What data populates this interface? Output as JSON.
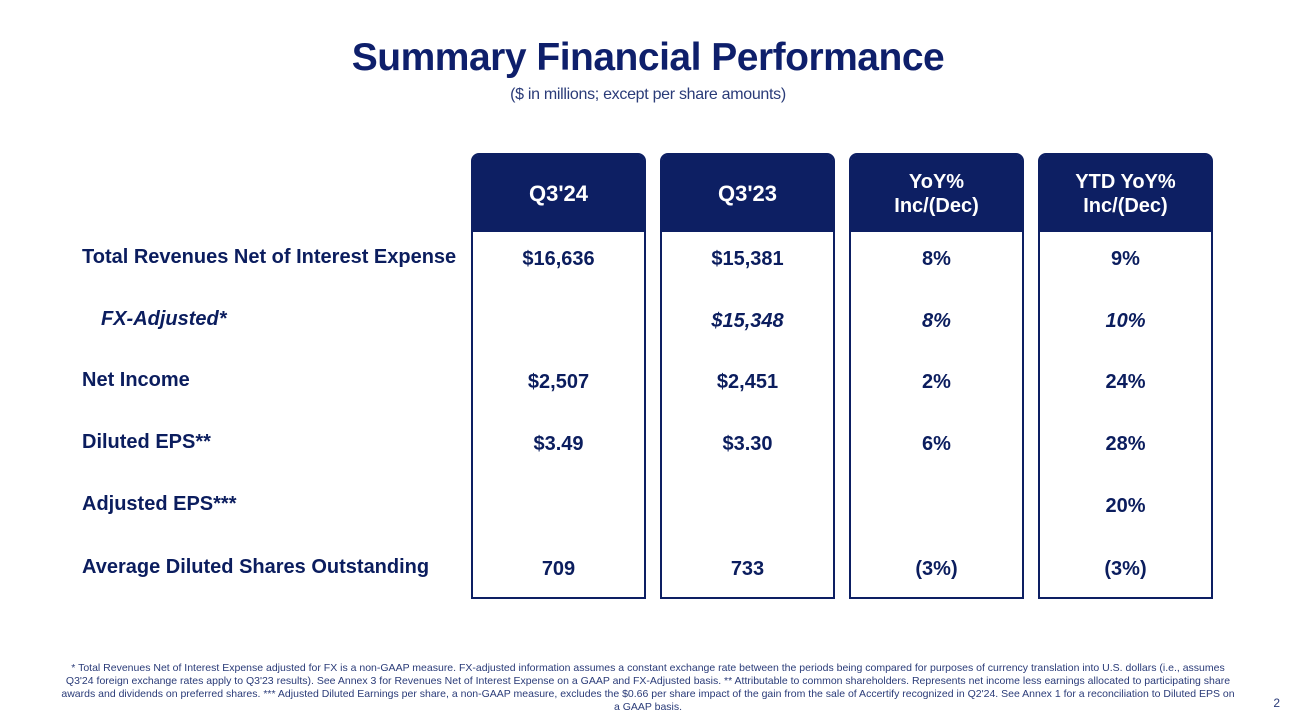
{
  "title": "Summary Financial Performance",
  "subtitle": "($ in millions; except per share amounts)",
  "columns": [
    "Q3'24",
    "Q3'23",
    "YoY%\nInc/(Dec)",
    "YTD YoY%\nInc/(Dec)"
  ],
  "rows": [
    {
      "label": "Total Revenues Net of Interest Expense",
      "italic": false,
      "values": [
        "$16,636",
        "$15,381",
        "8%",
        "9%"
      ]
    },
    {
      "label": "FX-Adjusted*",
      "italic": true,
      "values": [
        "",
        "$15,348",
        "8%",
        "10%"
      ]
    },
    {
      "label": "Net Income",
      "italic": false,
      "values": [
        "$2,507",
        "$2,451",
        "2%",
        "24%"
      ]
    },
    {
      "label": "Diluted EPS**",
      "italic": false,
      "values": [
        "$3.49",
        "$3.30",
        "6%",
        "28%"
      ]
    },
    {
      "label": "Adjusted EPS***",
      "italic": false,
      "values": [
        "",
        "",
        "",
        "20%"
      ]
    },
    {
      "label": "Average Diluted Shares Outstanding",
      "italic": false,
      "values": [
        "709",
        "733",
        "(3%)",
        "(3%)"
      ]
    }
  ],
  "footnote": "* Total Revenues Net of Interest Expense adjusted for FX is a non-GAAP measure. FX-adjusted information assumes a constant exchange rate between the periods being compared for purposes of currency translation into U.S. dollars (i.e., assumes Q3'24 foreign exchange rates apply to Q3'23 results). See Annex 3 for Revenues Net of Interest Expense on a GAAP and FX-Adjusted basis. ** Attributable to common shareholders. Represents net income less earnings allocated to participating share awards and dividends on preferred shares. *** Adjusted Diluted Earnings per share, a non-GAAP measure, excludes the $0.66 per share impact of the gain from the sale of Accertify recognized in Q2'24. See Annex 1 for a reconciliation to Diluted EPS on a GAAP basis.",
  "page_number": "2",
  "colors": {
    "navy": "#0d1f63",
    "text": "#0b1d5e"
  }
}
